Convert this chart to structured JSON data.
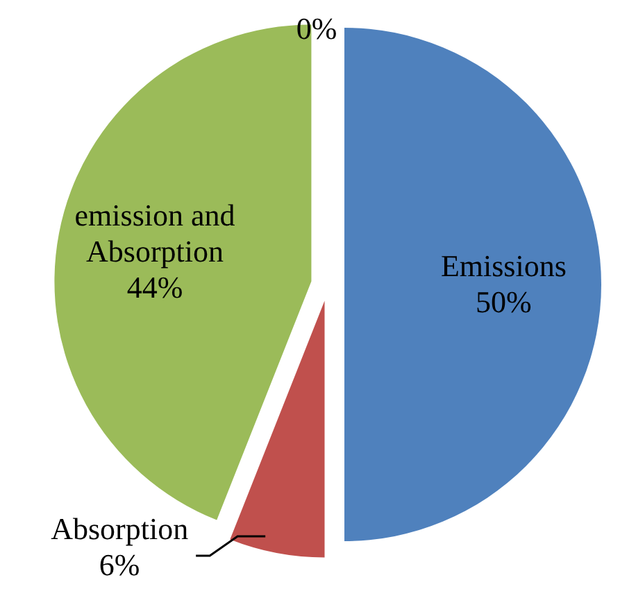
{
  "chart_data": {
    "type": "pie",
    "categories": [
      "Emissions",
      "Absorption",
      "emission and Absorption",
      null
    ],
    "values": [
      50,
      6,
      44,
      0
    ],
    "colors": [
      "#4f81bd",
      "#c0504d",
      "#9bbb59",
      "#f79646"
    ],
    "value_labels": [
      "50%",
      "6%",
      "44%",
      "0%"
    ],
    "legend": false
  }
}
